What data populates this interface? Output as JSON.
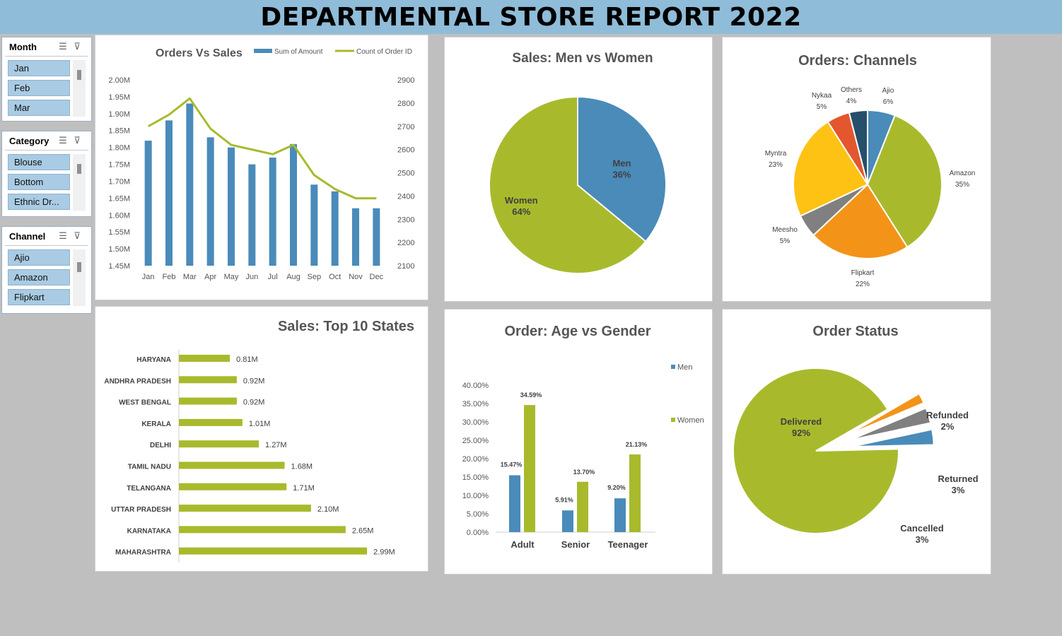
{
  "title": "DEPARTMENTAL STORE REPORT 2022",
  "slicers": [
    {
      "title": "Month",
      "items": [
        "Jan",
        "Feb",
        "Mar"
      ]
    },
    {
      "title": "Category",
      "items": [
        "Blouse",
        "Bottom",
        "Ethnic Dr..."
      ]
    },
    {
      "title": "Channel",
      "items": [
        "Ajio",
        "Amazon",
        "Flipkart"
      ]
    }
  ],
  "colors": {
    "blue": "#4a8bba",
    "green": "#a8ba2c",
    "banner": "#8fbcd8"
  },
  "chart_data": [
    {
      "type": "bar",
      "title": "Orders Vs Sales",
      "categories": [
        "Jan",
        "Feb",
        "Mar",
        "Apr",
        "May",
        "Jun",
        "Jul",
        "Aug",
        "Sep",
        "Oct",
        "Nov",
        "Dec"
      ],
      "series": [
        {
          "name": "Sum of Amount",
          "type": "bar",
          "axis": "left",
          "values": [
            1.82,
            1.88,
            1.93,
            1.83,
            1.8,
            1.75,
            1.77,
            1.81,
            1.69,
            1.67,
            1.62,
            1.62
          ]
        },
        {
          "name": "Count of Order ID",
          "type": "line",
          "axis": "right",
          "values": [
            2700,
            2750,
            2820,
            2690,
            2620,
            2600,
            2580,
            2620,
            2490,
            2430,
            2390,
            2390
          ]
        }
      ],
      "ylim": [
        1.45,
        2.0
      ],
      "yticks": [
        "2.00M",
        "1.95M",
        "1.90M",
        "1.85M",
        "1.80M",
        "1.75M",
        "1.70M",
        "1.65M",
        "1.60M",
        "1.55M",
        "1.50M",
        "1.45M"
      ],
      "y2lim": [
        2100,
        2900
      ],
      "y2ticks": [
        "2900",
        "2800",
        "2700",
        "2600",
        "2500",
        "2400",
        "2300",
        "2200",
        "2100"
      ],
      "legend": "top"
    },
    {
      "type": "pie",
      "title": "Sales: Men vs Women",
      "slices": [
        {
          "label": "Men",
          "pct": "36%",
          "value": 36
        },
        {
          "label": "Women",
          "pct": "64%",
          "value": 64
        }
      ]
    },
    {
      "type": "pie",
      "title": "Orders: Channels",
      "slices": [
        {
          "label": "Ajio",
          "pct": "6%",
          "value": 6
        },
        {
          "label": "Amazon",
          "pct": "35%",
          "value": 35
        },
        {
          "label": "Flipkart",
          "pct": "22%",
          "value": 22
        },
        {
          "label": "Meesho",
          "pct": "5%",
          "value": 5
        },
        {
          "label": "Myntra",
          "pct": "23%",
          "value": 23
        },
        {
          "label": "Nykaa",
          "pct": "5%",
          "value": 5
        },
        {
          "label": "Others",
          "pct": "4%",
          "value": 4
        }
      ]
    },
    {
      "type": "bar",
      "orientation": "horizontal",
      "title": "Sales: Top 10 States",
      "categories": [
        "HARYANA",
        "ANDHRA PRADESH",
        "WEST BENGAL",
        "KERALA",
        "DELHI",
        "TAMIL NADU",
        "TELANGANA",
        "UTTAR PRADESH",
        "KARNATAKA",
        "MAHARASHTRA"
      ],
      "values": [
        0.81,
        0.92,
        0.92,
        1.01,
        1.27,
        1.68,
        1.71,
        2.1,
        2.65,
        2.99
      ],
      "labels": [
        "0.81M",
        "0.92M",
        "0.92M",
        "1.01M",
        "1.27M",
        "1.68M",
        "1.71M",
        "2.10M",
        "2.65M",
        "2.99M"
      ]
    },
    {
      "type": "bar",
      "title": "Order: Age vs Gender",
      "categories": [
        "Adult",
        "Senior",
        "Teenager"
      ],
      "series": [
        {
          "name": "Men",
          "values": [
            15.47,
            5.91,
            9.2
          ],
          "labels": [
            "15.47%",
            "5.91%",
            "9.20%"
          ]
        },
        {
          "name": "Women",
          "values": [
            34.59,
            13.7,
            21.13
          ],
          "labels": [
            "34.59%",
            "13.70%",
            "21.13%"
          ]
        }
      ],
      "ylim": [
        0,
        40
      ],
      "yticks": [
        "40.00%",
        "35.00%",
        "30.00%",
        "25.00%",
        "20.00%",
        "15.00%",
        "10.00%",
        "5.00%",
        "0.00%"
      ],
      "legend": "right"
    },
    {
      "type": "pie",
      "title": "Order Status",
      "slices": [
        {
          "label": "Delivered",
          "pct": "92%",
          "value": 92
        },
        {
          "label": "Refunded",
          "pct": "2%",
          "value": 2
        },
        {
          "label": "Returned",
          "pct": "3%",
          "value": 3
        },
        {
          "label": "Cancelled",
          "pct": "3%",
          "value": 3
        }
      ]
    }
  ]
}
